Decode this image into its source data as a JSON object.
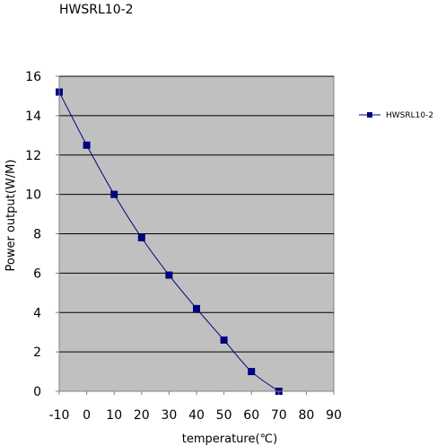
{
  "chart_data": {
    "type": "line",
    "title": "HWSRL10-2",
    "xlabel": "temperature(℃)",
    "ylabel": "Power output(W/M)",
    "xlim": [
      -10,
      90
    ],
    "ylim": [
      0,
      16
    ],
    "x_ticks": [
      "-10",
      "0",
      "10",
      "20",
      "30",
      "40",
      "50",
      "60",
      "70",
      "80",
      "90"
    ],
    "y_ticks": [
      "0",
      "2",
      "4",
      "6",
      "8",
      "10",
      "12",
      "14",
      "16"
    ],
    "grid": "horizontal",
    "legend_position": "right",
    "series": [
      {
        "name": "HWSRL10-2",
        "color": "#000080",
        "marker": "square",
        "x": [
          -10,
          0,
          10,
          20,
          30,
          40,
          50,
          60,
          70
        ],
        "y": [
          15.2,
          12.5,
          10.0,
          7.8,
          5.9,
          4.2,
          2.6,
          1.0,
          0.0
        ]
      }
    ],
    "plot_background": "#c0c0c0"
  }
}
